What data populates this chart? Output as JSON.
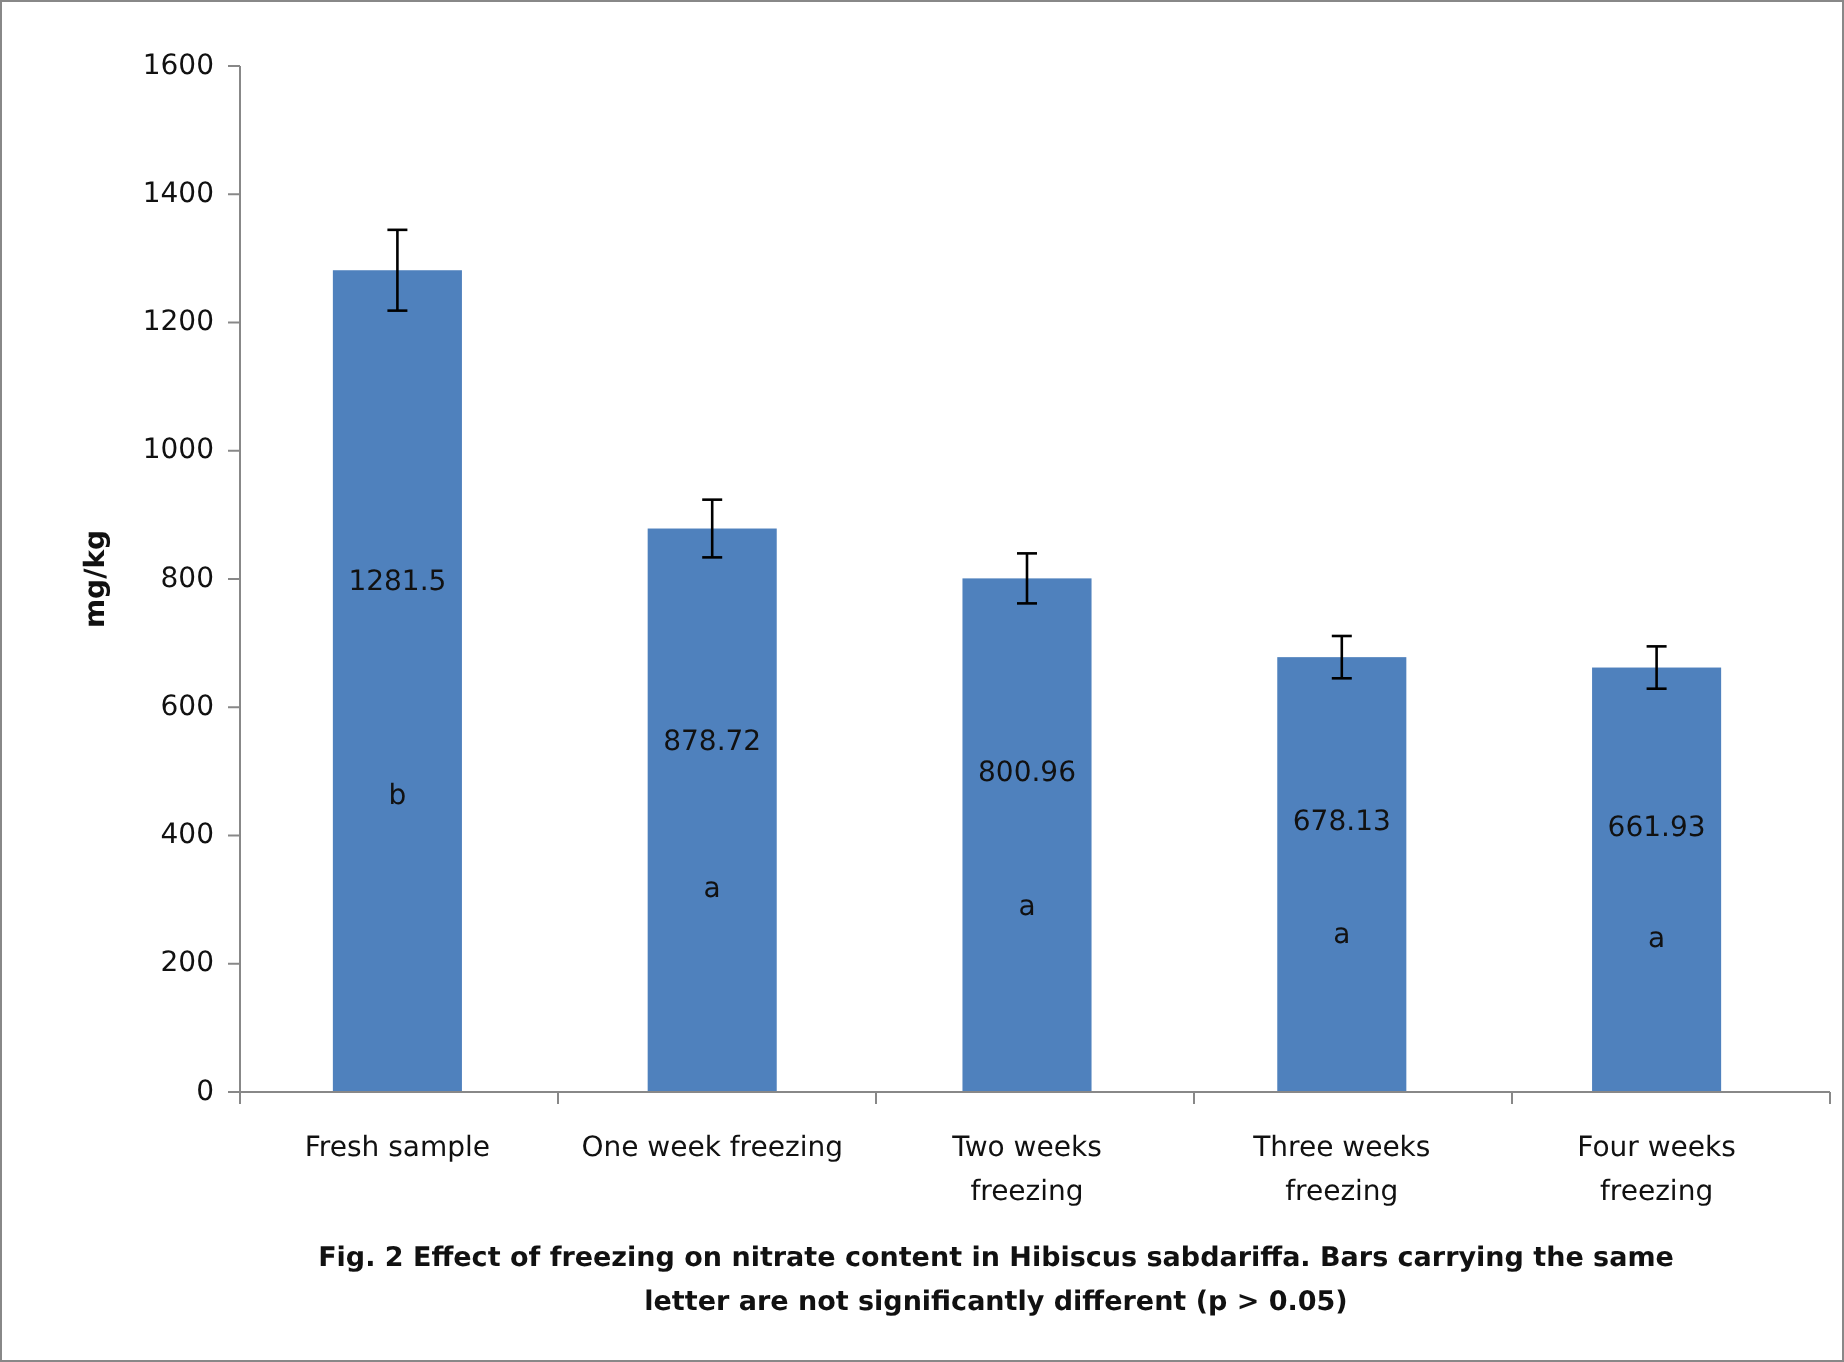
{
  "chart_data": {
    "type": "bar",
    "categories": [
      "Fresh sample",
      "One week freezing",
      "Two weeks freezing",
      "Three weeks freezing",
      "Four weeks freezing"
    ],
    "values": [
      1281.5,
      878.72,
      800.96,
      678.13,
      661.93
    ],
    "errors": [
      63,
      45,
      39,
      33,
      33
    ],
    "color": "#4f81bd",
    "data_labels": true,
    "ylabel": "mg/kg",
    "ylim": [
      0,
      1600
    ],
    "yticks": [
      0,
      200,
      400,
      600,
      800,
      1000,
      1200,
      1400,
      1600
    ],
    "grid": false,
    "annotations": [
      "b",
      "a",
      "a",
      "a",
      "a",
      "Fig. 2 Effect of freezing on nitrate content in Hibiscus sabdariffa. Bars carrying the same letter are not significantly  different (p > 0.05)"
    ]
  }
}
